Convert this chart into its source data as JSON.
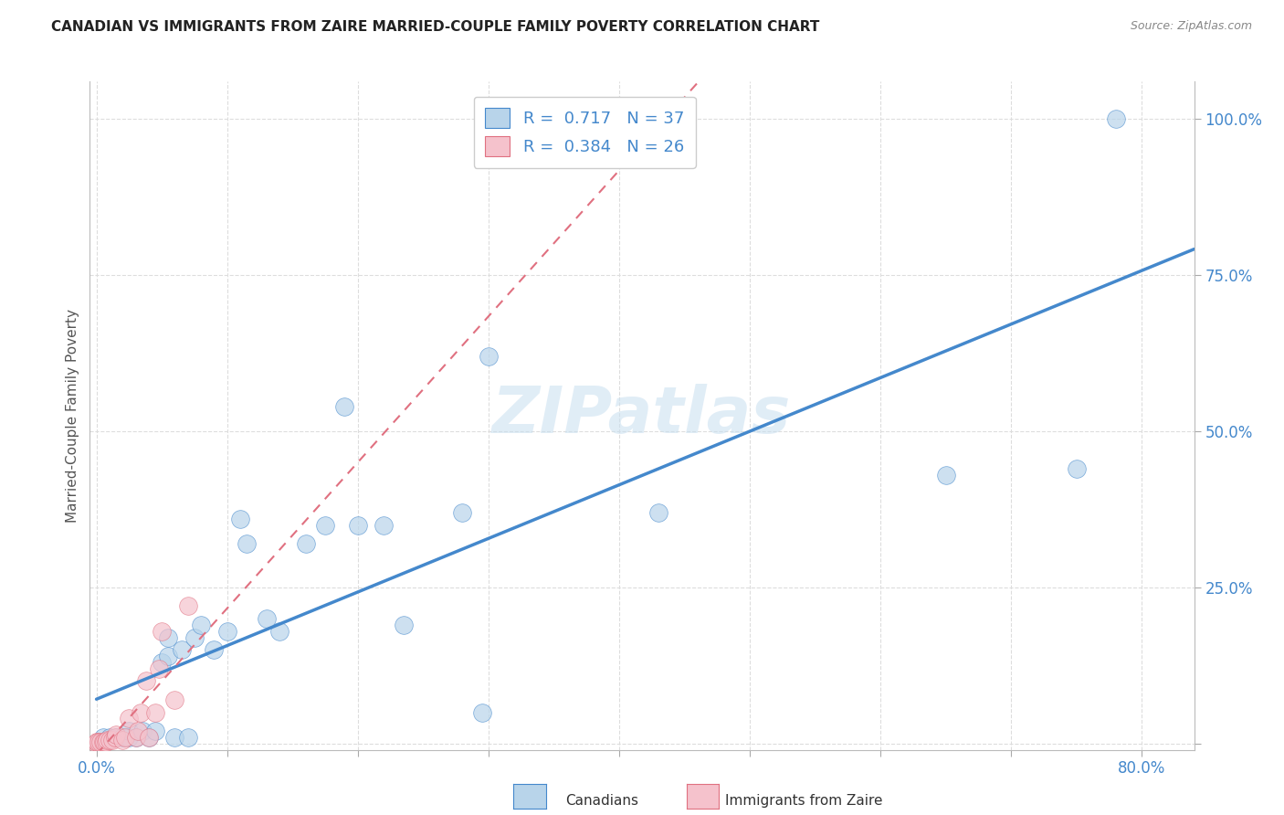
{
  "title": "CANADIAN VS IMMIGRANTS FROM ZAIRE MARRIED-COUPLE FAMILY POVERTY CORRELATION CHART",
  "source": "Source: ZipAtlas.com",
  "ylabel": "Married-Couple Family Poverty",
  "xlim": [
    -0.005,
    0.84
  ],
  "ylim": [
    -0.01,
    1.06
  ],
  "canadians_R": 0.717,
  "canadians_N": 37,
  "zaire_R": 0.384,
  "zaire_N": 26,
  "canadian_color": "#b8d4ea",
  "zaire_color": "#f5c2cc",
  "trendline_canadian_color": "#4488cc",
  "trendline_zaire_color": "#e07080",
  "canadians_x": [
    0.005,
    0.01,
    0.015,
    0.02,
    0.025,
    0.025,
    0.03,
    0.035,
    0.04,
    0.045,
    0.05,
    0.055,
    0.055,
    0.06,
    0.065,
    0.07,
    0.075,
    0.08,
    0.09,
    0.1,
    0.11,
    0.115,
    0.13,
    0.14,
    0.16,
    0.175,
    0.19,
    0.2,
    0.22,
    0.235,
    0.28,
    0.295,
    0.3,
    0.43,
    0.65,
    0.75,
    0.78
  ],
  "canadians_y": [
    0.01,
    0.01,
    0.01,
    0.01,
    0.01,
    0.02,
    0.01,
    0.02,
    0.01,
    0.02,
    0.13,
    0.14,
    0.17,
    0.01,
    0.15,
    0.01,
    0.17,
    0.19,
    0.15,
    0.18,
    0.36,
    0.32,
    0.2,
    0.18,
    0.32,
    0.35,
    0.54,
    0.35,
    0.35,
    0.19,
    0.37,
    0.05,
    0.62,
    0.37,
    0.43,
    0.44,
    1.0
  ],
  "zaire_x": [
    0.0,
    0.0,
    0.0,
    0.002,
    0.003,
    0.005,
    0.006,
    0.007,
    0.008,
    0.01,
    0.012,
    0.014,
    0.015,
    0.02,
    0.022,
    0.025,
    0.03,
    0.032,
    0.034,
    0.038,
    0.04,
    0.045,
    0.048,
    0.05,
    0.06,
    0.07
  ],
  "zaire_y": [
    0.0,
    0.002,
    0.003,
    0.002,
    0.003,
    0.002,
    0.003,
    0.003,
    0.005,
    0.005,
    0.005,
    0.01,
    0.015,
    0.005,
    0.01,
    0.04,
    0.01,
    0.02,
    0.05,
    0.1,
    0.01,
    0.05,
    0.12,
    0.18,
    0.07,
    0.22
  ],
  "trendline_canadian_x0": 0.0,
  "trendline_canadian_x1": 0.84,
  "trendline_zaire_x0": 0.0,
  "trendline_zaire_x1": 0.84,
  "watermark": "ZIPatlas",
  "background_color": "#ffffff",
  "grid_color": "#dddddd",
  "grid_style": "--"
}
